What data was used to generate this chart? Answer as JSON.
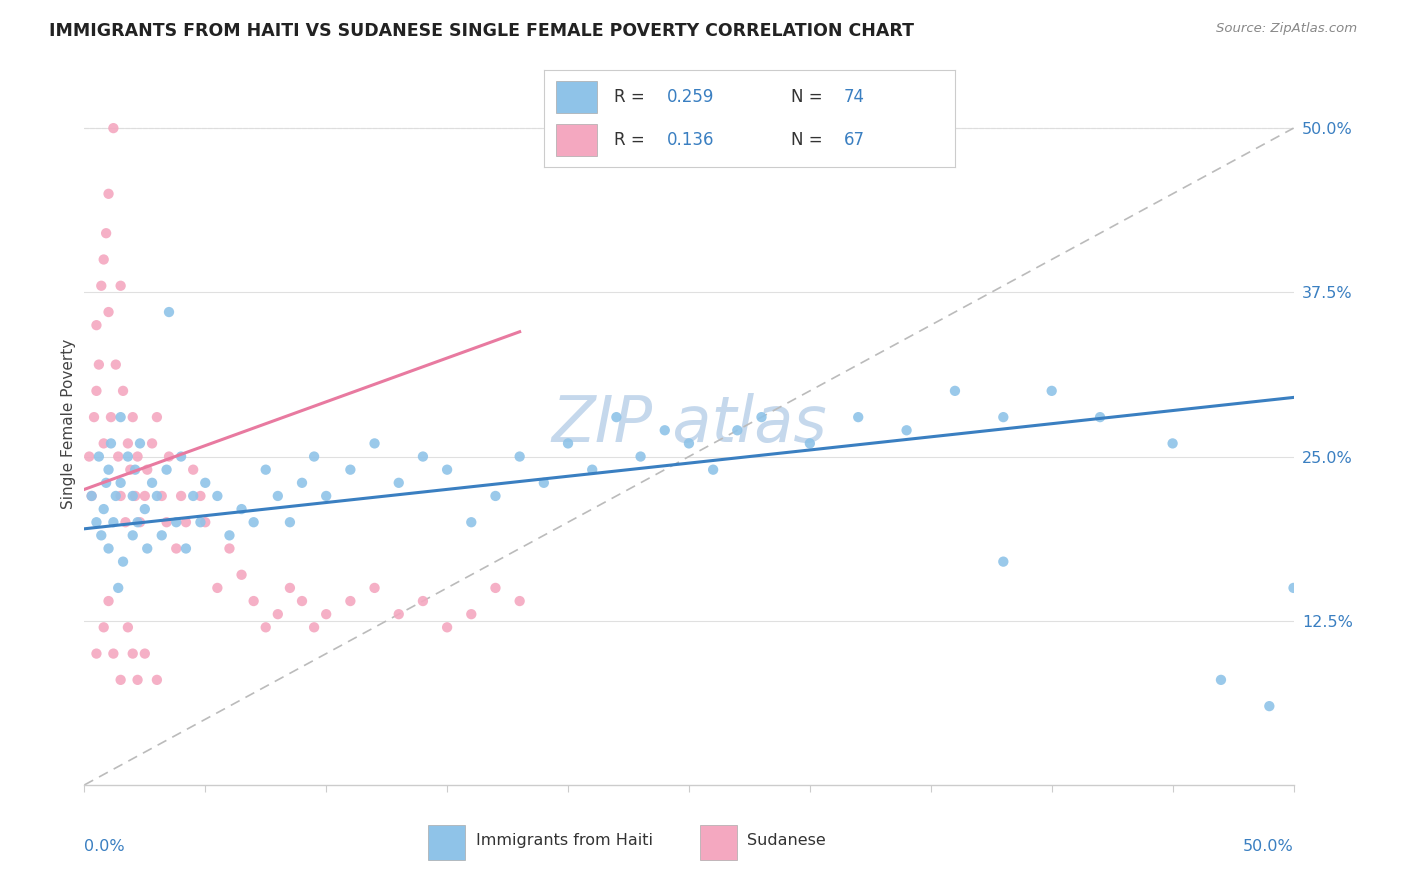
{
  "title": "IMMIGRANTS FROM HAITI VS SUDANESE SINGLE FEMALE POVERTY CORRELATION CHART",
  "source": "Source: ZipAtlas.com",
  "ylabel": "Single Female Poverty",
  "right_ytick_labels": [
    "",
    "12.5%",
    "25.0%",
    "37.5%",
    "50.0%"
  ],
  "right_yticks": [
    0.0,
    0.125,
    0.25,
    0.375,
    0.5
  ],
  "xlim": [
    0.0,
    0.5
  ],
  "ylim": [
    0.0,
    0.55
  ],
  "legend_haiti": "Immigrants from Haiti",
  "legend_sudanese": "Sudanese",
  "R_haiti": 0.259,
  "N_haiti": 74,
  "R_sudanese": 0.136,
  "N_sudanese": 67,
  "color_haiti": "#8fc3e8",
  "color_sudanese": "#f4a8c0",
  "color_haiti_line": "#3a7fc1",
  "color_sudanese_line": "#e87aa0",
  "watermark": "ZIP atlas",
  "watermark_color": "#c5d8ec",
  "haiti_x": [
    0.003,
    0.005,
    0.006,
    0.007,
    0.008,
    0.009,
    0.01,
    0.01,
    0.011,
    0.012,
    0.013,
    0.014,
    0.015,
    0.015,
    0.016,
    0.018,
    0.02,
    0.02,
    0.021,
    0.022,
    0.023,
    0.025,
    0.026,
    0.028,
    0.03,
    0.032,
    0.034,
    0.035,
    0.038,
    0.04,
    0.042,
    0.045,
    0.048,
    0.05,
    0.055,
    0.06,
    0.065,
    0.07,
    0.075,
    0.08,
    0.085,
    0.09,
    0.095,
    0.1,
    0.11,
    0.12,
    0.13,
    0.14,
    0.15,
    0.16,
    0.17,
    0.18,
    0.19,
    0.2,
    0.21,
    0.22,
    0.23,
    0.24,
    0.25,
    0.26,
    0.27,
    0.28,
    0.3,
    0.32,
    0.34,
    0.36,
    0.38,
    0.4,
    0.42,
    0.45,
    0.47,
    0.49,
    0.5,
    0.38
  ],
  "haiti_y": [
    0.22,
    0.2,
    0.25,
    0.19,
    0.21,
    0.23,
    0.24,
    0.18,
    0.26,
    0.2,
    0.22,
    0.15,
    0.23,
    0.28,
    0.17,
    0.25,
    0.22,
    0.19,
    0.24,
    0.2,
    0.26,
    0.21,
    0.18,
    0.23,
    0.22,
    0.19,
    0.24,
    0.36,
    0.2,
    0.25,
    0.18,
    0.22,
    0.2,
    0.23,
    0.22,
    0.19,
    0.21,
    0.2,
    0.24,
    0.22,
    0.2,
    0.23,
    0.25,
    0.22,
    0.24,
    0.26,
    0.23,
    0.25,
    0.24,
    0.2,
    0.22,
    0.25,
    0.23,
    0.26,
    0.24,
    0.28,
    0.25,
    0.27,
    0.26,
    0.24,
    0.27,
    0.28,
    0.26,
    0.28,
    0.27,
    0.3,
    0.28,
    0.3,
    0.28,
    0.26,
    0.08,
    0.06,
    0.15,
    0.17
  ],
  "sudanese_x": [
    0.002,
    0.003,
    0.004,
    0.005,
    0.005,
    0.006,
    0.007,
    0.008,
    0.008,
    0.009,
    0.01,
    0.01,
    0.011,
    0.012,
    0.013,
    0.014,
    0.015,
    0.015,
    0.016,
    0.017,
    0.018,
    0.019,
    0.02,
    0.021,
    0.022,
    0.023,
    0.025,
    0.026,
    0.028,
    0.03,
    0.032,
    0.034,
    0.035,
    0.038,
    0.04,
    0.042,
    0.045,
    0.048,
    0.05,
    0.055,
    0.06,
    0.065,
    0.07,
    0.075,
    0.08,
    0.085,
    0.09,
    0.095,
    0.1,
    0.11,
    0.12,
    0.13,
    0.14,
    0.15,
    0.16,
    0.17,
    0.18,
    0.005,
    0.008,
    0.01,
    0.012,
    0.015,
    0.018,
    0.02,
    0.022,
    0.025,
    0.03
  ],
  "sudanese_y": [
    0.25,
    0.22,
    0.28,
    0.3,
    0.35,
    0.32,
    0.38,
    0.4,
    0.26,
    0.42,
    0.45,
    0.36,
    0.28,
    0.5,
    0.32,
    0.25,
    0.38,
    0.22,
    0.3,
    0.2,
    0.26,
    0.24,
    0.28,
    0.22,
    0.25,
    0.2,
    0.22,
    0.24,
    0.26,
    0.28,
    0.22,
    0.2,
    0.25,
    0.18,
    0.22,
    0.2,
    0.24,
    0.22,
    0.2,
    0.15,
    0.18,
    0.16,
    0.14,
    0.12,
    0.13,
    0.15,
    0.14,
    0.12,
    0.13,
    0.14,
    0.15,
    0.13,
    0.14,
    0.12,
    0.13,
    0.15,
    0.14,
    0.1,
    0.12,
    0.14,
    0.1,
    0.08,
    0.12,
    0.1,
    0.08,
    0.1,
    0.08
  ],
  "haiti_trendline": [
    0.195,
    0.295
  ],
  "sudanese_trendline_x": [
    0.0,
    0.18
  ],
  "sudanese_trendline_y": [
    0.225,
    0.345
  ],
  "dashed_line": [
    [
      0.0,
      0.0
    ],
    [
      0.5,
      0.5
    ]
  ]
}
